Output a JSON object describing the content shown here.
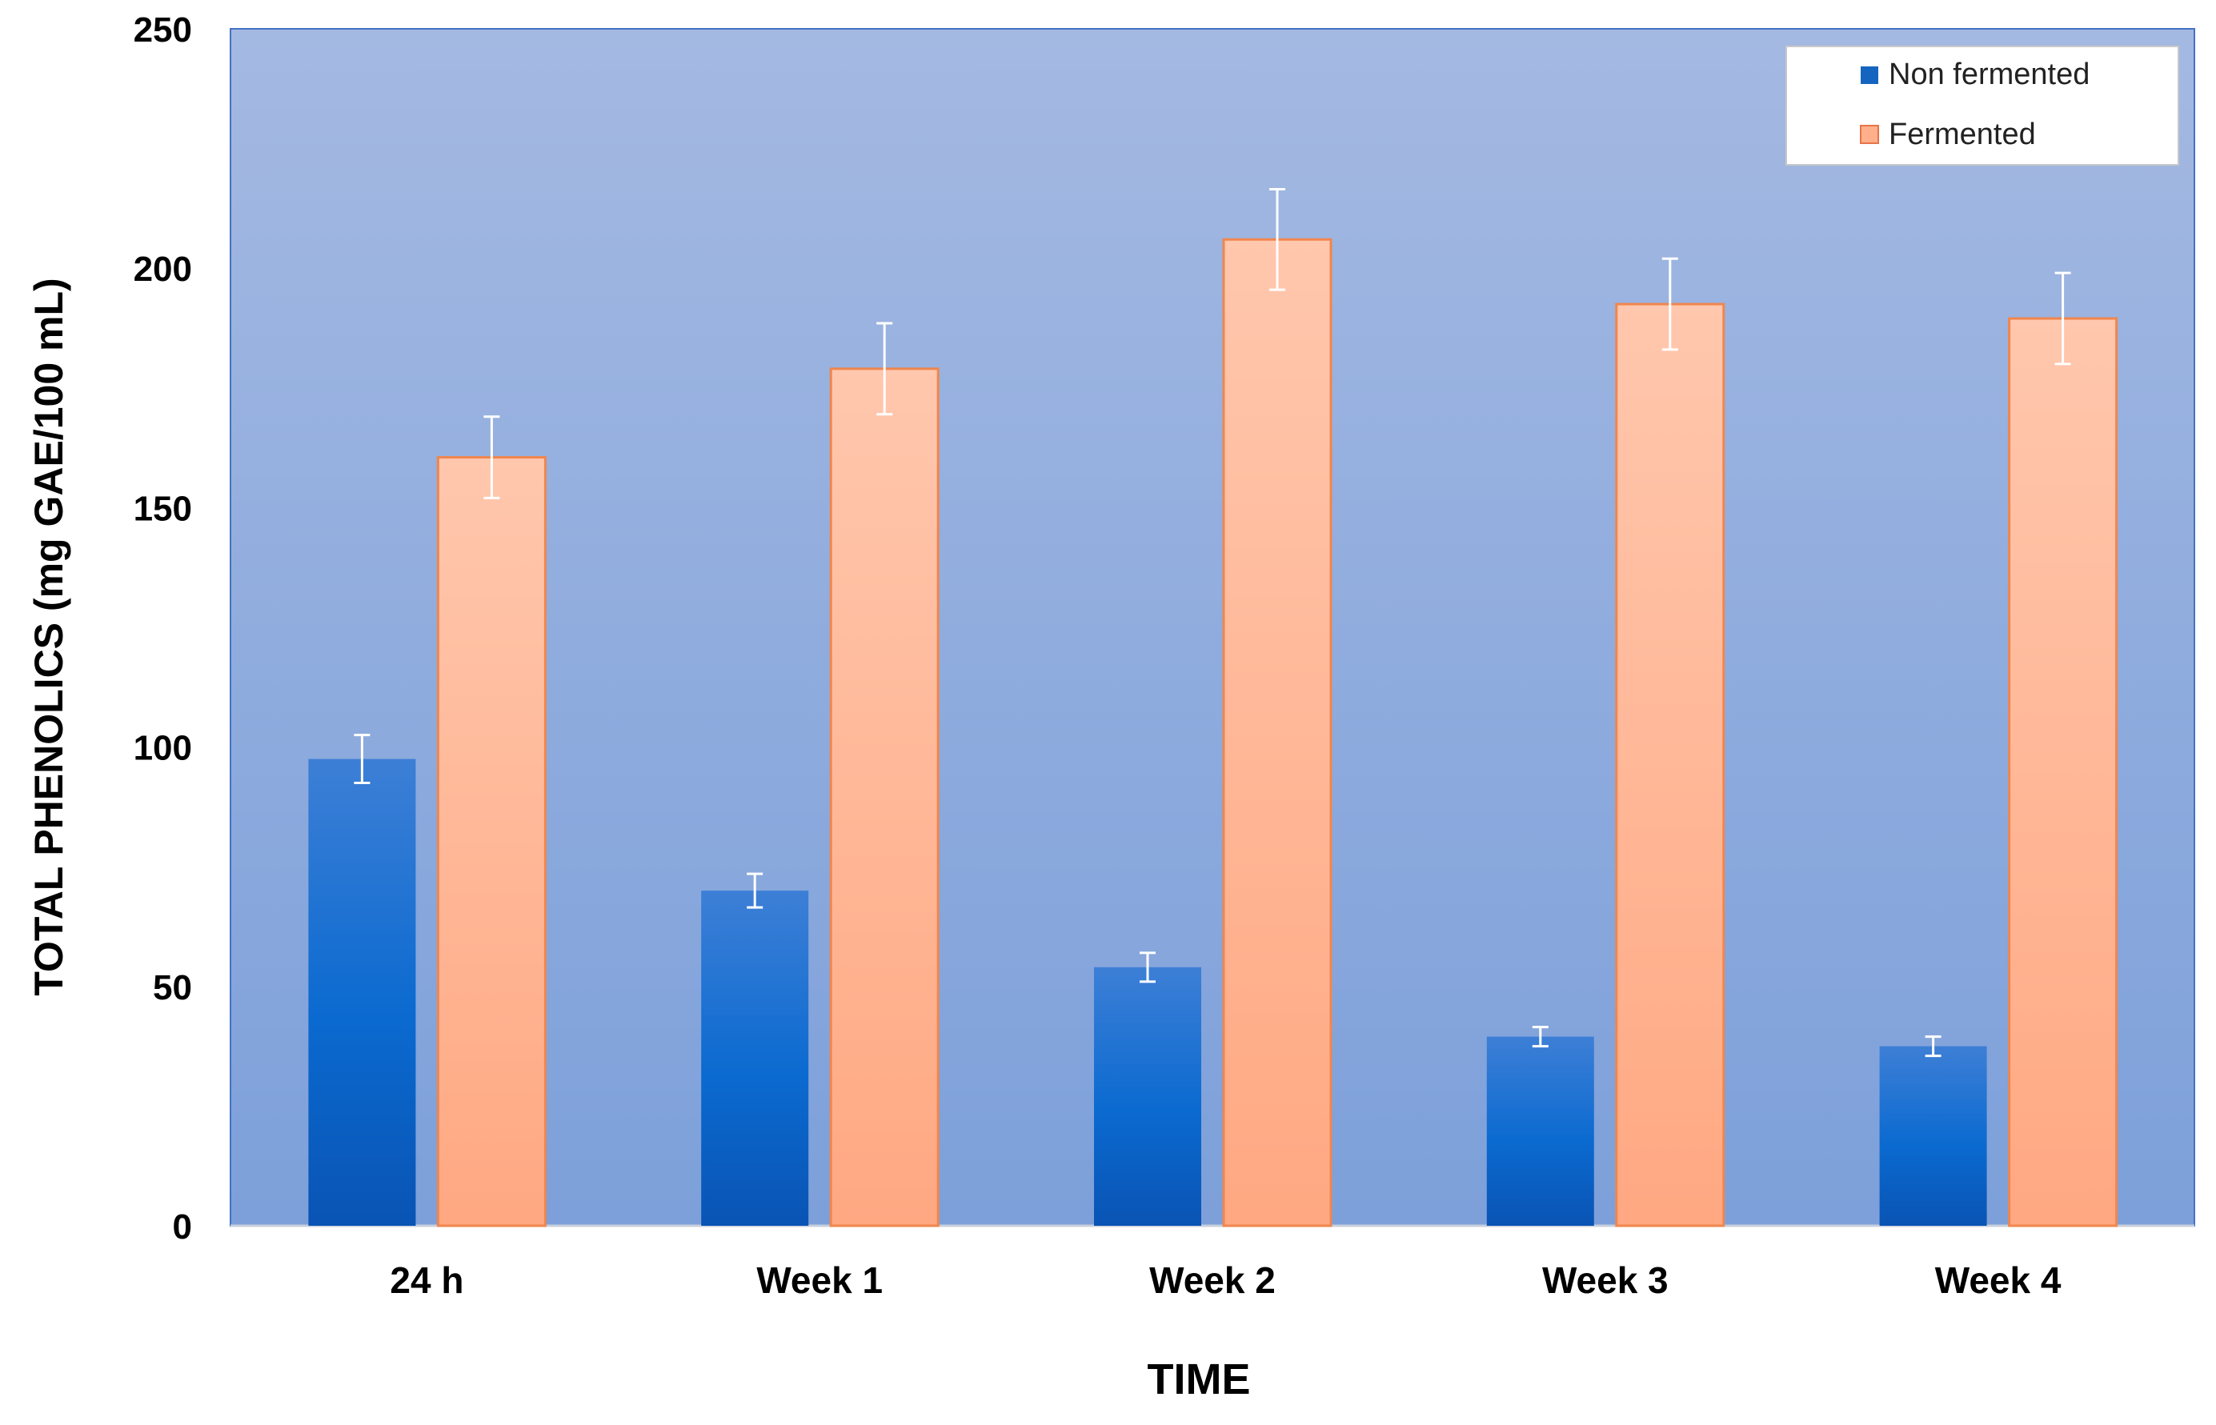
{
  "chart_data": {
    "type": "bar",
    "title": "",
    "xlabel": "TIME",
    "ylabel": "TOTAL PHENOLICS (mg GAE/100 mL)",
    "categories": [
      "24 h",
      "Week 1",
      "Week 2",
      "Week 3",
      "Week 4"
    ],
    "ylim": [
      0,
      250
    ],
    "yticks": [
      0,
      50,
      100,
      150,
      200,
      250
    ],
    "grid": false,
    "legend_position": "top-right",
    "series": [
      {
        "name": "Non fermented",
        "color": "#1565c0",
        "values": [
          97.5,
          70,
          54,
          39.5,
          37.5
        ],
        "errors": [
          5,
          3.5,
          3,
          2,
          2
        ]
      },
      {
        "name": "Fermented",
        "color": "#ffb08a",
        "values": [
          160.5,
          179,
          206,
          192.5,
          189.5
        ],
        "errors": [
          8.5,
          9.5,
          10.5,
          9.5,
          9.5
        ]
      }
    ]
  }
}
